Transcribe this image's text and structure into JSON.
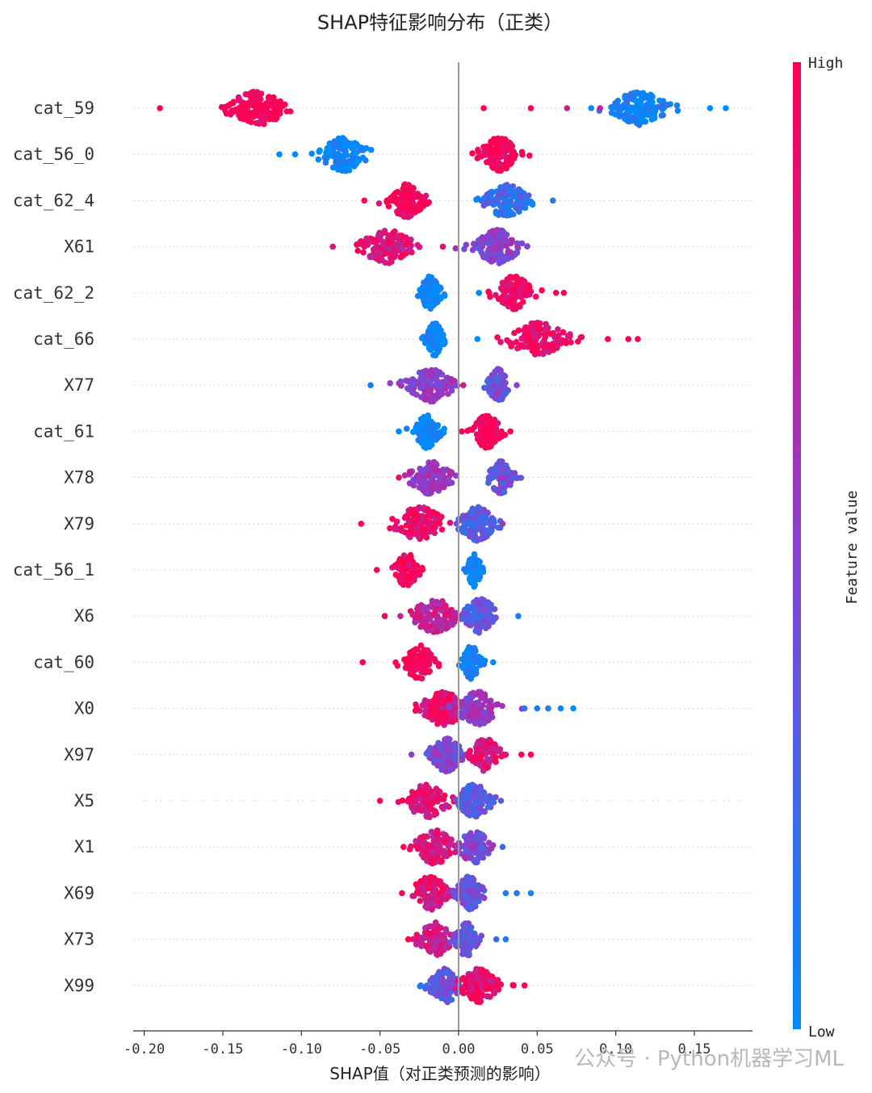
{
  "chart_data": {
    "type": "scatter",
    "subtype": "shap-beeswarm",
    "title": "SHAP特征影响分布（正类）",
    "xlabel": "SHAP值（对正类预测的影响）",
    "xlim": [
      -0.207,
      0.187
    ],
    "xticks": [
      -0.2,
      -0.15,
      -0.1,
      -0.05,
      0.0,
      0.05,
      0.1,
      0.15
    ],
    "xtick_labels": [
      "-0.20",
      "-0.15",
      "-0.10",
      "-0.05",
      "0.00",
      "0.05",
      "0.10",
      "0.15"
    ],
    "zero_line": 0.0,
    "colorbar": {
      "label": "Feature value",
      "high_label": "High",
      "low_label": "Low",
      "high_color": "#ff0052",
      "low_color": "#008bfb"
    },
    "features": [
      {
        "name": "cat_59",
        "clusters": [
          {
            "center": -0.128,
            "spread": 0.018,
            "count": 160,
            "color": 1.0
          },
          {
            "center": 0.115,
            "spread": 0.016,
            "count": 150,
            "color": 0.05
          }
        ],
        "outliers": [
          [
            -0.19,
            1
          ],
          [
            0.016,
            1
          ],
          [
            0.046,
            1
          ],
          [
            0.069,
            0.8
          ],
          [
            0.09,
            0.7
          ],
          [
            0.16,
            0
          ],
          [
            0.17,
            0
          ]
        ]
      },
      {
        "name": "cat_56_0",
        "clusters": [
          {
            "center": -0.073,
            "spread": 0.014,
            "count": 110,
            "color": 0.0
          },
          {
            "center": 0.026,
            "spread": 0.011,
            "count": 140,
            "color": 1.0
          }
        ],
        "outliers": [
          [
            -0.114,
            0
          ],
          [
            -0.104,
            0
          ]
        ]
      },
      {
        "name": "cat_62_4",
        "clusters": [
          {
            "center": -0.033,
            "spread": 0.011,
            "count": 130,
            "color": 1.0
          },
          {
            "center": 0.03,
            "spread": 0.013,
            "count": 140,
            "color": 0.18
          }
        ],
        "outliers": [
          [
            -0.06,
            1
          ],
          [
            0.06,
            0.1
          ]
        ]
      },
      {
        "name": "X61",
        "clusters": [
          {
            "center": -0.045,
            "spread": 0.016,
            "count": 140,
            "color": 0.85
          },
          {
            "center": 0.025,
            "spread": 0.013,
            "count": 140,
            "color": 0.5
          }
        ],
        "outliers": [
          [
            -0.08,
            0.85
          ],
          [
            -0.06,
            0.9
          ],
          [
            -0.01,
            0.9
          ]
        ]
      },
      {
        "name": "cat_62_2",
        "clusters": [
          {
            "center": -0.018,
            "spread": 0.006,
            "count": 110,
            "color": 0.0
          },
          {
            "center": 0.035,
            "spread": 0.011,
            "count": 110,
            "color": 0.95
          }
        ],
        "outliers": [
          [
            0.062,
            1
          ],
          [
            0.067,
            1
          ],
          [
            0.013,
            0
          ]
        ]
      },
      {
        "name": "cat_66",
        "clusters": [
          {
            "center": -0.015,
            "spread": 0.005,
            "count": 110,
            "color": 0.0
          },
          {
            "center": 0.05,
            "spread": 0.018,
            "count": 110,
            "color": 0.95
          }
        ],
        "outliers": [
          [
            0.012,
            0
          ],
          [
            0.095,
            1
          ],
          [
            0.108,
            1
          ],
          [
            0.114,
            1
          ]
        ]
      },
      {
        "name": "X77",
        "clusters": [
          {
            "center": -0.018,
            "spread": 0.014,
            "count": 120,
            "color": 0.55
          },
          {
            "center": 0.025,
            "spread": 0.006,
            "count": 100,
            "color": 0.42
          }
        ],
        "outliers": [
          [
            -0.056,
            0.1
          ],
          [
            0.037,
            0.5
          ],
          [
            0.003,
            0.8
          ]
        ]
      },
      {
        "name": "cat_61",
        "clusters": [
          {
            "center": -0.02,
            "spread": 0.007,
            "count": 110,
            "color": 0.0
          },
          {
            "center": 0.018,
            "spread": 0.008,
            "count": 120,
            "color": 0.95
          }
        ],
        "outliers": [
          [
            -0.038,
            0
          ],
          [
            0.002,
            1
          ],
          [
            0.033,
            1
          ]
        ]
      },
      {
        "name": "X78",
        "clusters": [
          {
            "center": -0.018,
            "spread": 0.012,
            "count": 120,
            "color": 0.58
          },
          {
            "center": 0.027,
            "spread": 0.007,
            "count": 100,
            "color": 0.38
          }
        ],
        "outliers": [
          [
            -0.038,
            0.9
          ],
          [
            0.035,
            0.3
          ]
        ]
      },
      {
        "name": "X79",
        "clusters": [
          {
            "center": -0.025,
            "spread": 0.015,
            "count": 120,
            "color": 0.9
          },
          {
            "center": 0.012,
            "spread": 0.011,
            "count": 130,
            "color": 0.3
          }
        ],
        "outliers": [
          [
            -0.062,
            1
          ],
          [
            0.028,
            0.6
          ]
        ]
      },
      {
        "name": "cat_56_1",
        "clusters": [
          {
            "center": -0.033,
            "spread": 0.007,
            "count": 90,
            "color": 1.0
          },
          {
            "center": 0.01,
            "spread": 0.004,
            "count": 90,
            "color": 0.0
          }
        ],
        "outliers": [
          [
            -0.052,
            1
          ],
          [
            -0.023,
            1
          ]
        ]
      },
      {
        "name": "X6",
        "clusters": [
          {
            "center": -0.015,
            "spread": 0.014,
            "count": 130,
            "color": 0.75
          },
          {
            "center": 0.014,
            "spread": 0.011,
            "count": 120,
            "color": 0.35
          }
        ],
        "outliers": [
          [
            -0.047,
            0.95
          ],
          [
            0.038,
            0.1
          ]
        ]
      },
      {
        "name": "cat_60",
        "clusters": [
          {
            "center": -0.025,
            "spread": 0.01,
            "count": 110,
            "color": 1.0
          },
          {
            "center": 0.008,
            "spread": 0.005,
            "count": 90,
            "color": 0.05
          }
        ],
        "outliers": [
          [
            -0.061,
            1
          ],
          [
            0.022,
            0
          ]
        ]
      },
      {
        "name": "X0",
        "clusters": [
          {
            "center": -0.01,
            "spread": 0.013,
            "count": 170,
            "color": 0.9
          },
          {
            "center": 0.012,
            "spread": 0.012,
            "count": 120,
            "color": 0.55
          }
        ],
        "outliers": [
          [
            0.05,
            0.1
          ],
          [
            0.057,
            0.1
          ],
          [
            0.065,
            0
          ],
          [
            0.073,
            0
          ],
          [
            0.042,
            0.2
          ]
        ]
      },
      {
        "name": "X97",
        "clusters": [
          {
            "center": -0.008,
            "spread": 0.01,
            "count": 110,
            "color": 0.45
          },
          {
            "center": 0.017,
            "spread": 0.009,
            "count": 110,
            "color": 0.85
          }
        ],
        "outliers": [
          [
            -0.03,
            0.5
          ],
          [
            0.04,
            1
          ],
          [
            0.046,
            1
          ],
          [
            0.03,
            0.9
          ]
        ]
      },
      {
        "name": "X5",
        "clusters": [
          {
            "center": -0.02,
            "spread": 0.013,
            "count": 120,
            "color": 0.85
          },
          {
            "center": 0.01,
            "spread": 0.01,
            "count": 130,
            "color": 0.3
          }
        ],
        "outliers": [
          [
            -0.05,
            1
          ],
          [
            0.027,
            0.3
          ]
        ]
      },
      {
        "name": "X1",
        "clusters": [
          {
            "center": -0.015,
            "spread": 0.012,
            "count": 120,
            "color": 0.85
          },
          {
            "center": 0.01,
            "spread": 0.009,
            "count": 110,
            "color": 0.45
          }
        ],
        "outliers": [
          [
            -0.035,
            1
          ],
          [
            0.028,
            0.2
          ]
        ]
      },
      {
        "name": "X69",
        "clusters": [
          {
            "center": -0.018,
            "spread": 0.011,
            "count": 120,
            "color": 0.85
          },
          {
            "center": 0.007,
            "spread": 0.008,
            "count": 110,
            "color": 0.4
          }
        ],
        "outliers": [
          [
            -0.036,
            1
          ],
          [
            0.03,
            0.1
          ],
          [
            0.046,
            0.05
          ],
          [
            0.037,
            0.1
          ]
        ]
      },
      {
        "name": "X73",
        "clusters": [
          {
            "center": -0.015,
            "spread": 0.01,
            "count": 110,
            "color": 0.8
          },
          {
            "center": 0.005,
            "spread": 0.007,
            "count": 110,
            "color": 0.35
          }
        ],
        "outliers": [
          [
            -0.032,
            1
          ],
          [
            0.03,
            0.1
          ],
          [
            0.024,
            0.2
          ]
        ]
      },
      {
        "name": "X99",
        "clusters": [
          {
            "center": -0.008,
            "spread": 0.01,
            "count": 110,
            "color": 0.35
          },
          {
            "center": 0.013,
            "spread": 0.011,
            "count": 120,
            "color": 0.9
          }
        ],
        "outliers": [
          [
            -0.024,
            0.1
          ],
          [
            0.042,
            1
          ],
          [
            0.035,
            1
          ]
        ]
      }
    ]
  },
  "watermark": "公众号 · Python机器学习ML"
}
